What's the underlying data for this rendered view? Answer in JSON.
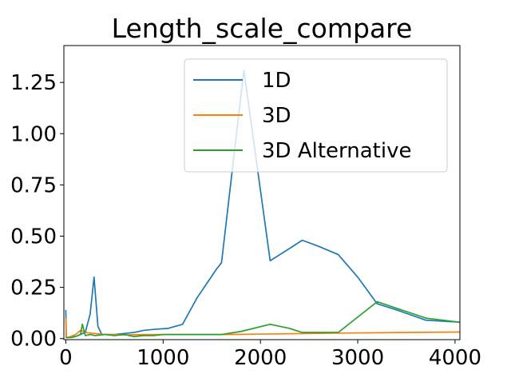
{
  "chart_data": {
    "type": "line",
    "title": "Length_scale_compare",
    "xlabel": "",
    "ylabel": "",
    "xlim": [
      -20,
      4050
    ],
    "ylim": [
      -0.005,
      1.43
    ],
    "xticks": [
      0,
      1000,
      2000,
      3000,
      4000
    ],
    "xtick_labels": [
      "0",
      "1000",
      "2000",
      "3000",
      "4000"
    ],
    "yticks": [
      0.0,
      0.25,
      0.5,
      0.75,
      1.0,
      1.25
    ],
    "ytick_labels": [
      "0.00",
      "0.25",
      "0.50",
      "0.75",
      "1.00",
      "1.25"
    ],
    "grid": false,
    "legend_position": "top-right",
    "series": [
      {
        "name": "1D",
        "color": "#1f77b4",
        "x": [
          0,
          5,
          10,
          50,
          100,
          150,
          200,
          250,
          290,
          330,
          370,
          500,
          600,
          700,
          800,
          900,
          1050,
          1200,
          1350,
          1550,
          1600,
          1830,
          2100,
          2200,
          2300,
          2430,
          2600,
          2800,
          3000,
          3200,
          3400,
          3700,
          4050
        ],
        "y": [
          0.14,
          0.005,
          0.005,
          0.01,
          0.01,
          0.02,
          0.03,
          0.12,
          0.3,
          0.06,
          0.02,
          0.02,
          0.025,
          0.03,
          0.04,
          0.045,
          0.05,
          0.07,
          0.2,
          0.34,
          0.37,
          1.31,
          0.38,
          0.41,
          0.44,
          0.48,
          0.45,
          0.41,
          0.3,
          0.17,
          0.14,
          0.09,
          0.08
        ]
      },
      {
        "name": "3D",
        "color": "#ff7f0e",
        "x": [
          0,
          5,
          20,
          50,
          100,
          150,
          200,
          300,
          400,
          500,
          600,
          800,
          1000,
          1200,
          1400,
          1600,
          2000,
          2500,
          3000,
          3500,
          4050
        ],
        "y": [
          0.1,
          0.005,
          0.005,
          0.01,
          0.02,
          0.04,
          0.03,
          0.025,
          0.02,
          0.02,
          0.018,
          0.02,
          0.02,
          0.02,
          0.02,
          0.02,
          0.022,
          0.025,
          0.028,
          0.03,
          0.032
        ]
      },
      {
        "name": "3D Alternative",
        "color": "#2ca02c",
        "x": [
          0,
          50,
          100,
          150,
          170,
          200,
          250,
          300,
          400,
          500,
          600,
          700,
          800,
          900,
          1000,
          1200,
          1400,
          1600,
          1800,
          2100,
          2300,
          2430,
          2800,
          3200,
          3700,
          4050
        ],
        "y": [
          0.005,
          0.005,
          0.01,
          0.02,
          0.07,
          0.015,
          0.02,
          0.015,
          0.02,
          0.015,
          0.02,
          0.01,
          0.015,
          0.015,
          0.02,
          0.02,
          0.02,
          0.02,
          0.035,
          0.07,
          0.05,
          0.03,
          0.03,
          0.18,
          0.1,
          0.08
        ]
      }
    ]
  }
}
